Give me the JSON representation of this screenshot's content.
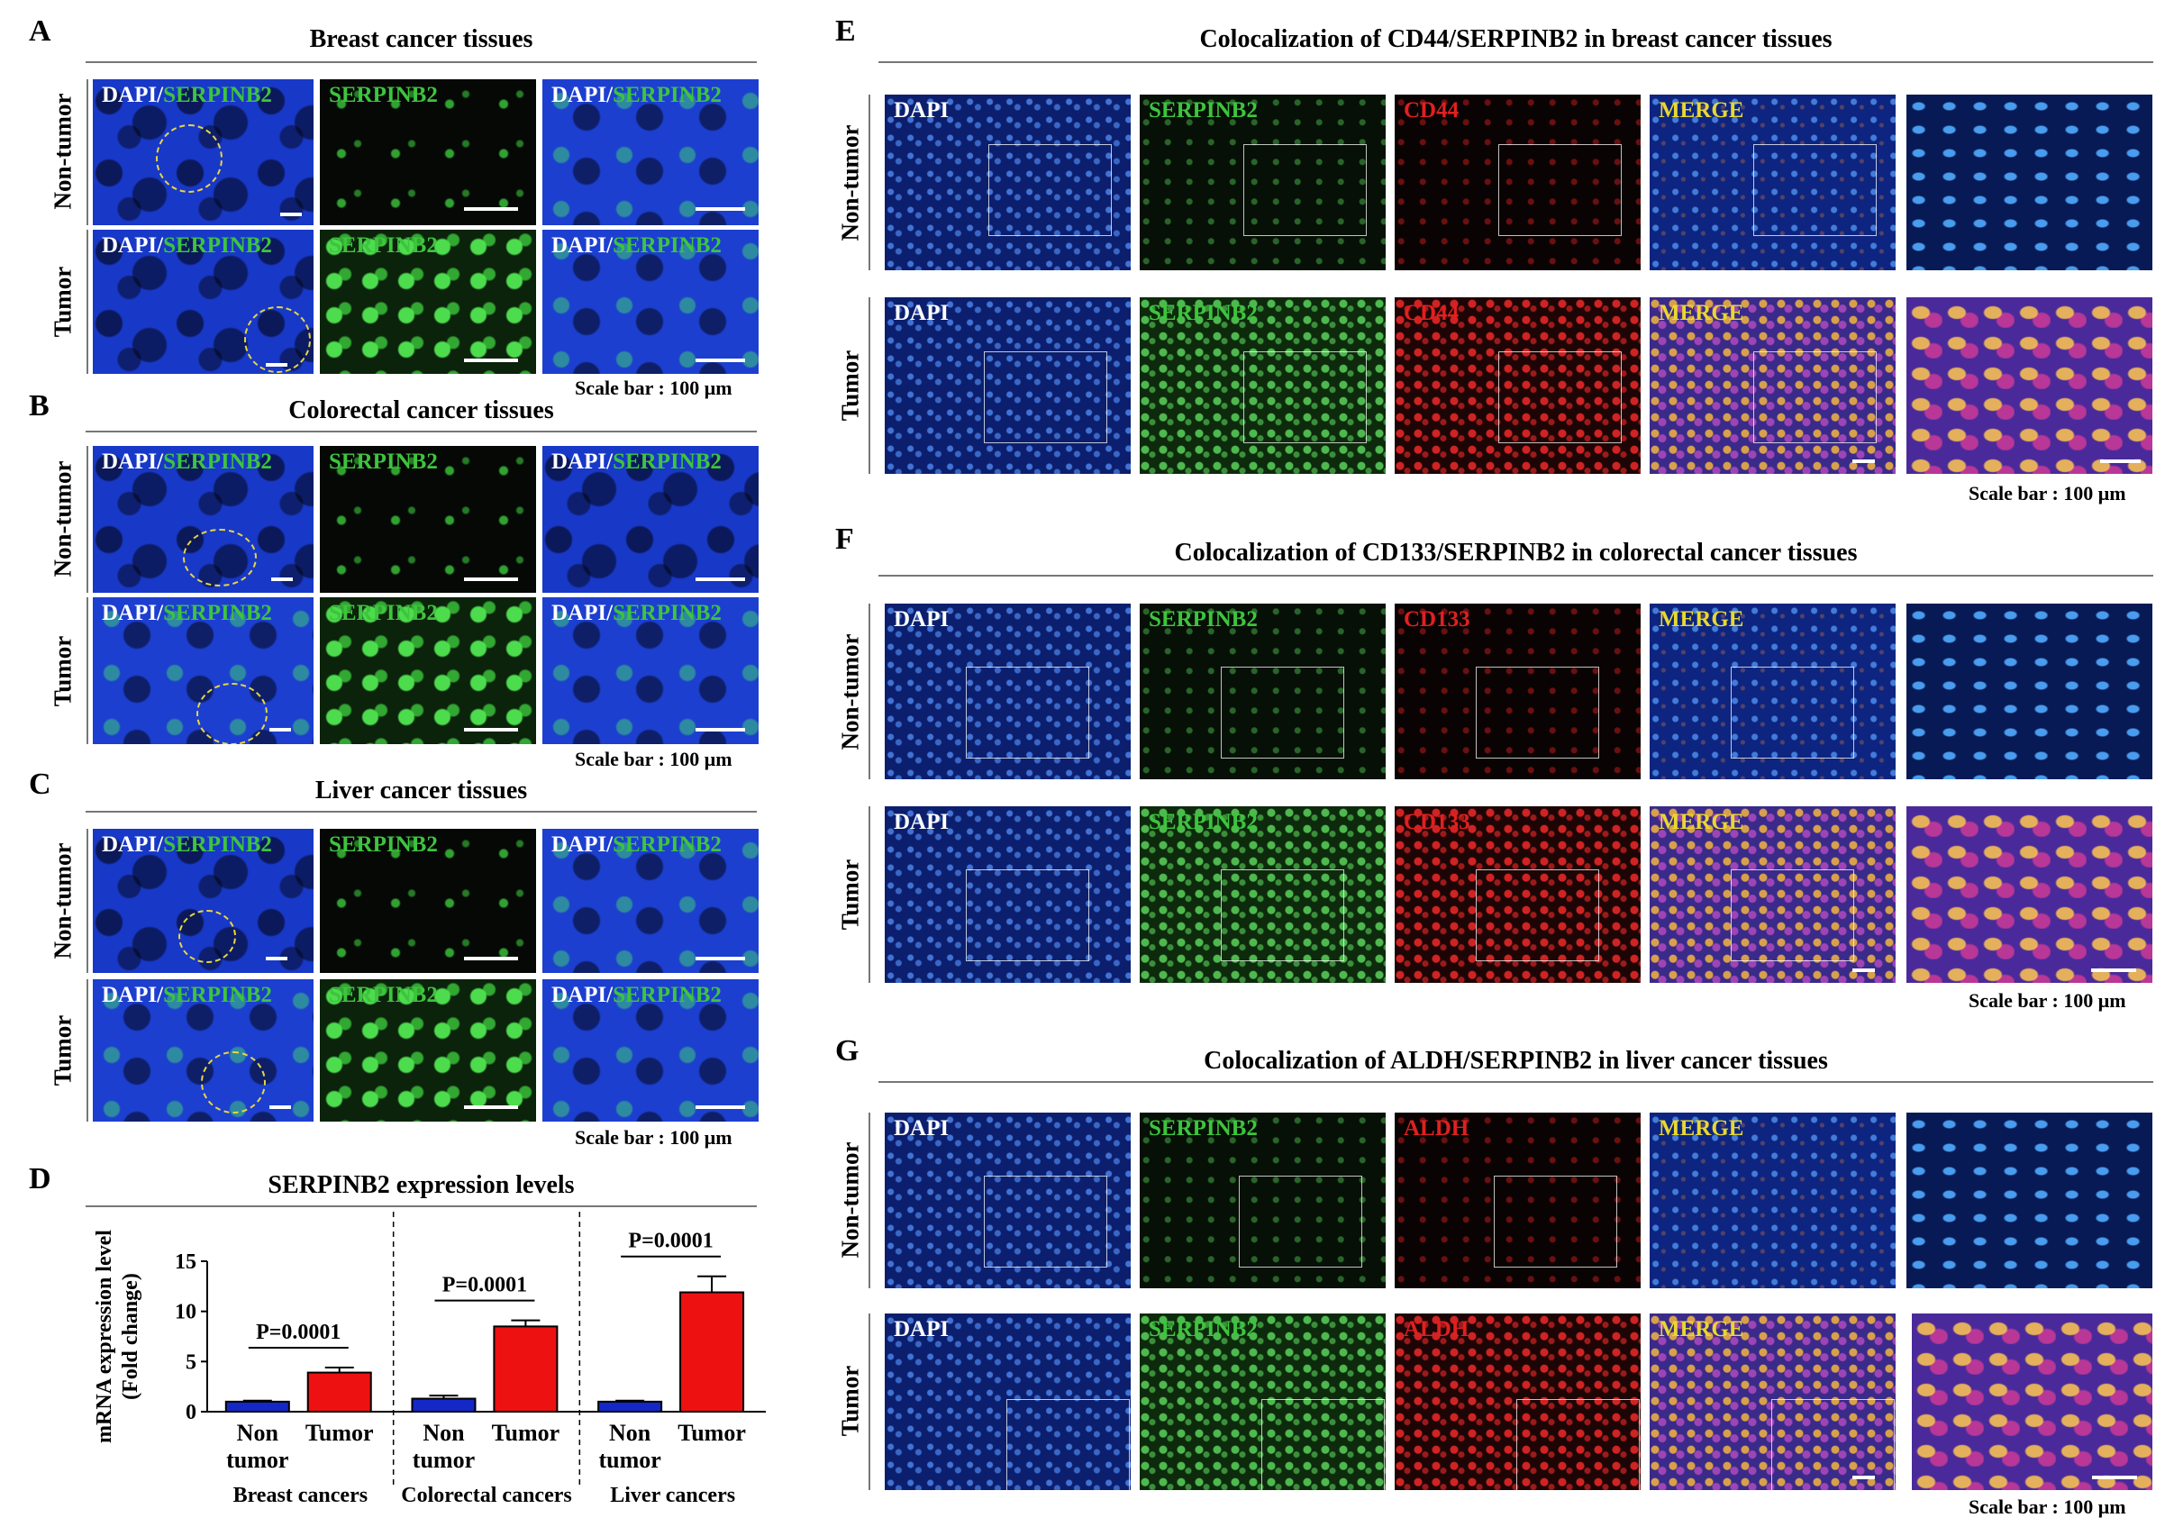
{
  "panel_letters": [
    "A",
    "B",
    "C",
    "D",
    "E",
    "F",
    "G"
  ],
  "titles": {
    "A": "Breast cancer tissues",
    "B": "Colorectal cancer tissues",
    "C": "Liver cancer tissues",
    "D": "SERPINB2 expression levels",
    "E": "Colocalization of CD44/SERPINB2 in breast cancer tissues",
    "F": "Colocalization of CD133/SERPINB2 in colorectal cancer tissues",
    "G": "Colocalization of ALDH/SERPINB2 in liver cancer tissues"
  },
  "row_labels": {
    "non_tumor": "Non-tumor",
    "tumor": "Tumor"
  },
  "image_labels": {
    "dapi": "DAPI",
    "slash": "/",
    "serpinb2": "SERPINB2",
    "cd44": "CD44",
    "cd133": "CD133",
    "aldh": "ALDH",
    "merge": "MERGE"
  },
  "scale_bar_text": "Scale bar : 100 μm",
  "colors": {
    "dapi_label": "#ffffff",
    "serpinb2_label": "#3ec43e",
    "marker_label": "#e02020",
    "merge_label": "#e8d830",
    "non_tumor_bar": "#1428c8",
    "tumor_bar": "#ee1111"
  },
  "chart_data": {
    "type": "bar",
    "title": "SERPINB2 expression levels",
    "ylabel_line1": "mRNA expression level",
    "ylabel_line2": "(Fold change)",
    "ylim": [
      0,
      15
    ],
    "yticks": [
      "0",
      "5",
      "10",
      "15"
    ],
    "groups": [
      {
        "name": "Breast cancers",
        "pvalue": "P=0.0001",
        "bars": [
          {
            "label_line1": "Non",
            "label_line2": "tumor",
            "value": 1.0,
            "error": 0.1
          },
          {
            "label_line1": "Tumor",
            "label_line2": "",
            "value": 3.9,
            "error": 0.5
          }
        ]
      },
      {
        "name": "Colorectal cancers",
        "pvalue": "P=0.0001",
        "bars": [
          {
            "label_line1": "Non",
            "label_line2": "tumor",
            "value": 1.3,
            "error": 0.3
          },
          {
            "label_line1": "Tumor",
            "label_line2": "",
            "value": 8.5,
            "error": 0.6
          }
        ]
      },
      {
        "name": "Liver cancers",
        "pvalue": "P=0.0001",
        "bars": [
          {
            "label_line1": "Non",
            "label_line2": "tumor",
            "value": 1.0,
            "error": 0.1
          },
          {
            "label_line1": "Tumor",
            "label_line2": "",
            "value": 11.9,
            "error": 1.6
          }
        ]
      }
    ]
  }
}
